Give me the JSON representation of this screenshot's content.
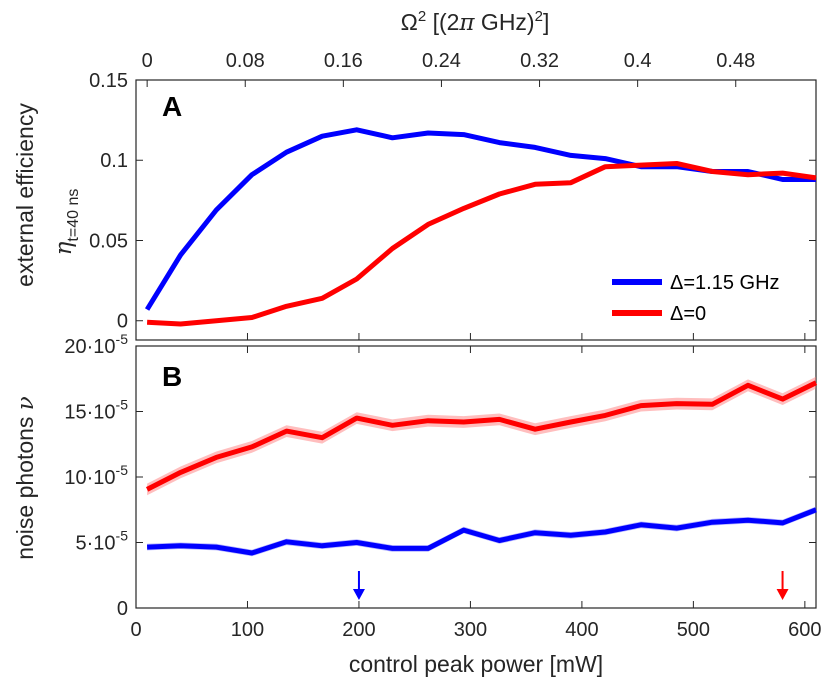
{
  "chart_data": [
    {
      "panel": "A",
      "type": "line",
      "ylabel": "external efficiency",
      "ylabel2": "η",
      "ylabel2_sub": "t=40 ns",
      "xlabel_top": "Ω² [(2π GHz)²]",
      "xlabel_top_parts": {
        "omega": "Ω",
        "sup1": "2",
        "open": " [(2",
        "pi": "π",
        "ghz": " GHz)",
        "sup2": "2",
        "close": "]"
      },
      "xlim": [
        0,
        610
      ],
      "ylim": [
        -0.012,
        0.15
      ],
      "yticks": [
        0,
        0.05,
        0.1,
        0.15
      ],
      "ytick_labels": [
        "0",
        "0.05",
        "0.1",
        "0.15"
      ],
      "top_ticks": [
        0,
        0.08,
        0.16,
        0.24,
        0.32,
        0.4,
        0.48
      ],
      "top_tick_labels": [
        "0",
        "0.08",
        "0.16",
        "0.24",
        "0.32",
        "0.4",
        "0.48"
      ],
      "top_tick_positions_mw": [
        10,
        98,
        186,
        274,
        362,
        450,
        538
      ],
      "series": [
        {
          "name": "Δ=1.15 GHz",
          "color": "#0000ff",
          "x": [
            10,
            40,
            72,
            104,
            135,
            167,
            198,
            230,
            262,
            294,
            326,
            358,
            390,
            421,
            453,
            485,
            517,
            549,
            580,
            610
          ],
          "values": [
            0.007,
            0.041,
            0.069,
            0.091,
            0.105,
            0.115,
            0.119,
            0.114,
            0.117,
            0.116,
            0.111,
            0.108,
            0.103,
            0.101,
            0.096,
            0.096,
            0.093,
            0.093,
            0.088,
            0.088
          ]
        },
        {
          "name": "Δ=0",
          "color": "#ff0000",
          "x": [
            10,
            40,
            72,
            104,
            135,
            167,
            198,
            230,
            262,
            294,
            326,
            358,
            390,
            421,
            453,
            485,
            517,
            549,
            580,
            610
          ],
          "values": [
            -0.001,
            -0.002,
            0.0,
            0.002,
            0.009,
            0.014,
            0.026,
            0.045,
            0.06,
            0.07,
            0.079,
            0.085,
            0.086,
            0.096,
            0.097,
            0.098,
            0.093,
            0.091,
            0.092,
            0.089
          ]
        }
      ],
      "legend_location": "lower-right"
    },
    {
      "panel": "B",
      "type": "line",
      "ylabel": "noise photons",
      "ylabel_sym": "ν",
      "xlabel": "control peak power [mW]",
      "xlim": [
        0,
        610
      ],
      "xticks": [
        0,
        100,
        200,
        300,
        400,
        500,
        600
      ],
      "xtick_labels": [
        "0",
        "100",
        "200",
        "300",
        "400",
        "500",
        "600"
      ],
      "ylim": [
        0,
        0.0002
      ],
      "yticks": [
        0,
        5e-05,
        0.0001,
        0.00015,
        0.0002
      ],
      "ytick_mantissas": [
        "0",
        "5",
        "10",
        "15",
        "20"
      ],
      "ytick_exp_base": "·10",
      "ytick_exp": "-5",
      "series": [
        {
          "name": "Δ=1.15 GHz",
          "color": "#0000ff",
          "x": [
            10,
            40,
            72,
            104,
            135,
            167,
            198,
            230,
            262,
            294,
            326,
            358,
            390,
            421,
            453,
            485,
            517,
            549,
            580,
            610
          ],
          "values": [
            4.65e-05,
            4.75e-05,
            4.65e-05,
            4.2e-05,
            5.05e-05,
            4.75e-05,
            5e-05,
            4.55e-05,
            4.55e-05,
            5.95e-05,
            5.15e-05,
            5.75e-05,
            5.55e-05,
            5.8e-05,
            6.35e-05,
            6.1e-05,
            6.55e-05,
            6.7e-05,
            6.5e-05,
            7.5e-05
          ],
          "err": 2.5e-06
        },
        {
          "name": "Δ=0",
          "color": "#ff0000",
          "x": [
            10,
            40,
            72,
            104,
            135,
            167,
            198,
            230,
            262,
            294,
            326,
            358,
            390,
            421,
            453,
            485,
            517,
            549,
            580,
            610
          ],
          "values": [
            9.05e-05,
            0.0001035,
            0.000115,
            0.000123,
            0.000135,
            0.00013,
            0.000145,
            0.0001395,
            0.000143,
            0.000142,
            0.000144,
            0.0001365,
            0.000142,
            0.000147,
            0.0001545,
            0.000156,
            0.0001555,
            0.00017,
            0.0001595,
            0.000172
          ],
          "err": 4.5e-06
        }
      ],
      "arrows": [
        {
          "x": 200,
          "color": "#0000ff"
        },
        {
          "x": 580,
          "color": "#ff0000"
        }
      ]
    }
  ]
}
